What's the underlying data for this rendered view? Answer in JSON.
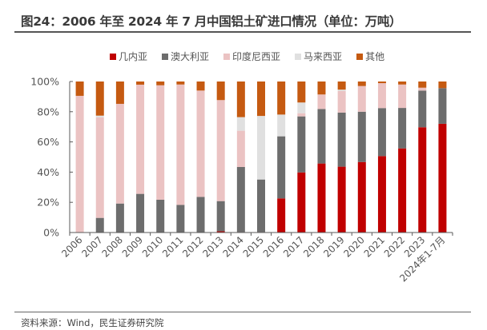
{
  "title": "图24：2006 年至 2024 年 7 月中国铝土矿进口情况（单位：万吨）",
  "source": "资料来源：Wind，民生证券研究院",
  "chart_data": {
    "type": "bar",
    "stacked": true,
    "percent": true,
    "title": "图24：2006 年至 2024 年 7 月中国铝土矿进口情况（单位：万吨）",
    "xlabel": "",
    "ylabel": "",
    "ylim": [
      0,
      100
    ],
    "yticks": [
      "0%",
      "20%",
      "40%",
      "60%",
      "80%",
      "100%"
    ],
    "grid": false,
    "legend_position": "top",
    "categories": [
      "2006",
      "2007",
      "2008",
      "2009",
      "2010",
      "2011",
      "2012",
      "2013",
      "2014",
      "2015",
      "2016",
      "2017",
      "2018",
      "2019",
      "2020",
      "2021",
      "2022",
      "2023",
      "2024年1-7月"
    ],
    "series": [
      {
        "name": "几内亚",
        "color": "#c00000",
        "values": [
          0,
          0,
          0,
          0,
          0,
          0,
          0,
          0.8,
          0.3,
          0.3,
          22.6,
          39.8,
          45.7,
          43.6,
          46.7,
          50.6,
          55.7,
          69.7,
          72.0
        ]
      },
      {
        "name": "澳大利亚",
        "color": "#6d6d6d",
        "values": [
          0,
          9.7,
          19.2,
          25.6,
          21.7,
          18.3,
          23.6,
          20.0,
          43.1,
          34.8,
          41.1,
          37.1,
          36.1,
          35.8,
          33.3,
          31.8,
          26.8,
          24.3,
          23.6
        ]
      },
      {
        "name": "印度尼西亚",
        "color": "#ebc3c3",
        "values": [
          90.5,
          66.5,
          66.0,
          72.3,
          75.8,
          79.7,
          70.4,
          66.9,
          24.0,
          0,
          0,
          2.1,
          9.6,
          14.3,
          17.0,
          16.5,
          15.5,
          1.9,
          0
        ]
      },
      {
        "name": "马来西亚",
        "color": "#e0e0e0",
        "values": [
          0,
          1.2,
          0,
          0,
          0,
          0,
          0,
          0,
          9.0,
          42.1,
          14.4,
          7.1,
          0,
          0.9,
          0,
          0,
          0,
          0,
          0
        ]
      },
      {
        "name": "其他",
        "color": "#c55a11",
        "values": [
          9.5,
          22.6,
          14.8,
          2.1,
          2.5,
          2.0,
          6.0,
          12.3,
          23.6,
          22.8,
          21.9,
          13.9,
          8.6,
          5.4,
          3.0,
          1.1,
          2.0,
          4.1,
          4.4
        ]
      }
    ]
  }
}
